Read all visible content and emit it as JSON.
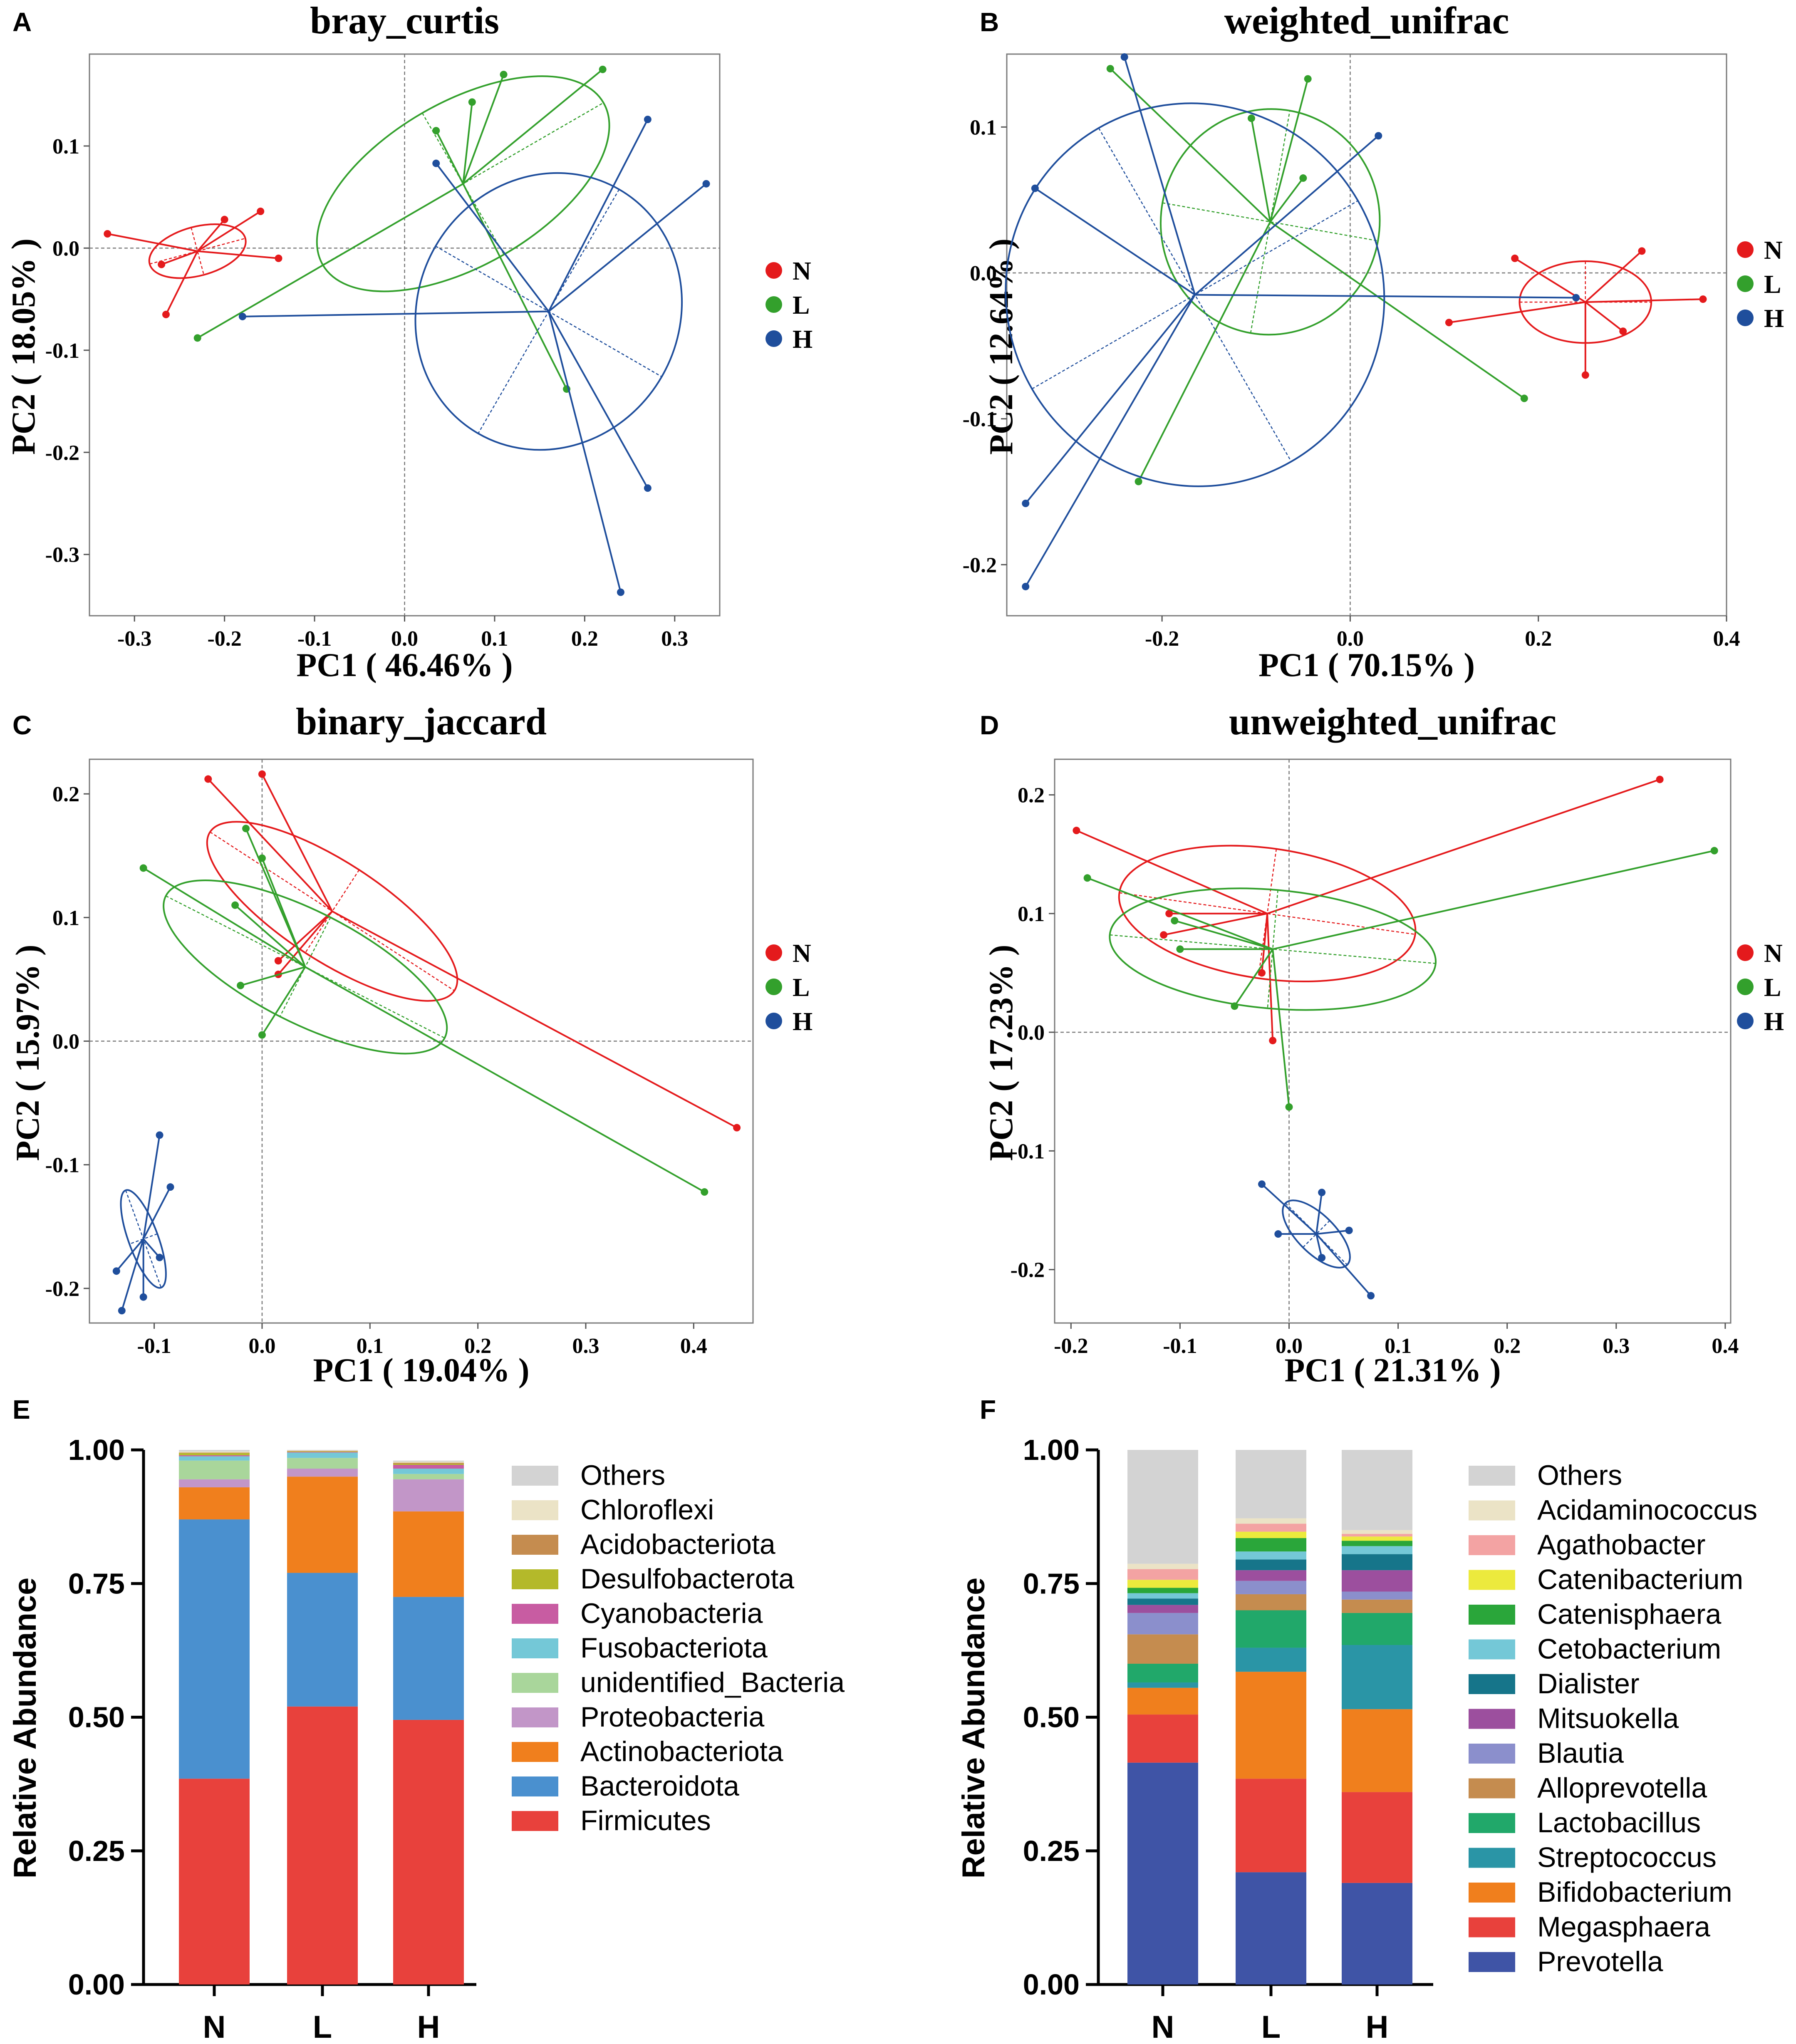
{
  "figure": {
    "groups": [
      {
        "name": "N",
        "color": "#e41a1c"
      },
      {
        "name": "L",
        "color": "#33a02c"
      },
      {
        "name": "H",
        "color": "#1f4e9c"
      }
    ]
  },
  "chart_data": [
    {
      "id": "A",
      "type": "scatter",
      "title": "bray_curtis",
      "xlabel": "PC1 ( 46.46% )",
      "ylabel": "PC2 ( 18.05% )",
      "xlim": [
        -0.35,
        0.35
      ],
      "ylim": [
        -0.36,
        0.19
      ],
      "xticks": [
        -0.3,
        -0.2,
        -0.1,
        0.0,
        0.1,
        0.2,
        0.3
      ],
      "yticks": [
        -0.3,
        -0.2,
        -0.1,
        0.0,
        0.1
      ],
      "legend": [
        "N",
        "L",
        "H"
      ],
      "legend_position": "right",
      "series": [
        {
          "name": "N",
          "centroid": [
            -0.23,
            -0.003
          ],
          "ellipse": {
            "rx": 0.055,
            "ry": 0.024,
            "angle": 15
          },
          "points": [
            [
              -0.33,
              0.014
            ],
            [
              -0.27,
              -0.016
            ],
            [
              -0.265,
              -0.065
            ],
            [
              -0.2,
              0.028
            ],
            [
              -0.16,
              0.036
            ],
            [
              -0.14,
              -0.01
            ]
          ]
        },
        {
          "name": "L",
          "centroid": [
            0.065,
            0.063
          ],
          "ellipse": {
            "rx": 0.18,
            "ry": 0.08,
            "angle": 30
          },
          "points": [
            [
              -0.23,
              -0.088
            ],
            [
              0.035,
              0.115
            ],
            [
              0.075,
              0.143
            ],
            [
              0.11,
              0.17
            ],
            [
              0.22,
              0.175
            ],
            [
              0.18,
              -0.138
            ]
          ]
        },
        {
          "name": "H",
          "centroid": [
            0.16,
            -0.062
          ],
          "ellipse": {
            "rx": 0.145,
            "ry": 0.138,
            "angle": -30
          },
          "points": [
            [
              -0.18,
              -0.067
            ],
            [
              0.035,
              0.083
            ],
            [
              0.27,
              0.126
            ],
            [
              0.335,
              0.063
            ],
            [
              0.27,
              -0.235
            ],
            [
              0.24,
              -0.337
            ]
          ]
        }
      ]
    },
    {
      "id": "B",
      "type": "scatter",
      "title": "weighted_unifrac",
      "xlabel": "PC1 ( 70.15% )",
      "ylabel": "PC2 ( 12.64% )",
      "xlim": [
        -0.365,
        0.4
      ],
      "ylim": [
        -0.235,
        0.15
      ],
      "xticks": [
        -0.2,
        0.0,
        0.2,
        0.4
      ],
      "yticks": [
        -0.2,
        -0.1,
        0.0,
        0.1
      ],
      "legend": [
        "N",
        "L",
        "H"
      ],
      "legend_position": "right",
      "series": [
        {
          "name": "N",
          "centroid": [
            0.25,
            -0.02
          ],
          "ellipse": {
            "rx": 0.07,
            "ry": 0.028,
            "angle": 0
          },
          "points": [
            [
              0.105,
              -0.034
            ],
            [
              0.175,
              0.01
            ],
            [
              0.31,
              0.015
            ],
            [
              0.375,
              -0.018
            ],
            [
              0.29,
              -0.04
            ],
            [
              0.25,
              -0.07
            ]
          ]
        },
        {
          "name": "L",
          "centroid": [
            -0.085,
            0.035
          ],
          "ellipse": {
            "rx": 0.12,
            "ry": 0.075,
            "angle": 80
          },
          "points": [
            [
              -0.255,
              0.14
            ],
            [
              -0.105,
              0.106
            ],
            [
              -0.045,
              0.133
            ],
            [
              -0.05,
              0.065
            ],
            [
              0.185,
              -0.086
            ],
            [
              -0.225,
              -0.143
            ]
          ]
        },
        {
          "name": "H",
          "centroid": [
            -0.165,
            -0.015
          ],
          "ellipse": {
            "rx": 0.2,
            "ry": 0.132,
            "angle": 30
          },
          "points": [
            [
              -0.24,
              0.148
            ],
            [
              -0.335,
              0.058
            ],
            [
              0.03,
              0.094
            ],
            [
              -0.345,
              -0.158
            ],
            [
              -0.345,
              -0.215
            ],
            [
              0.24,
              -0.017
            ]
          ]
        }
      ]
    },
    {
      "id": "C",
      "type": "scatter",
      "title": "binary_jaccard",
      "xlabel": "PC1 ( 19.04% )",
      "ylabel": "PC2 ( 15.97% )",
      "xlim": [
        -0.16,
        0.455
      ],
      "ylim": [
        -0.228,
        0.228
      ],
      "xticks": [
        -0.1,
        0.0,
        0.1,
        0.2,
        0.3,
        0.4
      ],
      "yticks": [
        -0.2,
        -0.1,
        0.0,
        0.1,
        0.2
      ],
      "legend": [
        "N",
        "L",
        "H"
      ],
      "legend_position": "right",
      "series": [
        {
          "name": "N",
          "centroid": [
            0.065,
            0.105
          ],
          "ellipse": {
            "rx": 0.135,
            "ry": 0.04,
            "angle": -33
          },
          "points": [
            [
              -0.05,
              0.212
            ],
            [
              0.0,
              0.216
            ],
            [
              0.015,
              0.065
            ],
            [
              0.015,
              0.054
            ],
            [
              0.44,
              -0.07
            ]
          ]
        },
        {
          "name": "L",
          "centroid": [
            0.04,
            0.06
          ],
          "ellipse": {
            "rx": 0.145,
            "ry": 0.045,
            "angle": -27
          },
          "points": [
            [
              -0.11,
              0.14
            ],
            [
              -0.015,
              0.172
            ],
            [
              0.0,
              0.148
            ],
            [
              -0.025,
              0.11
            ],
            [
              -0.02,
              0.045
            ],
            [
              0.0,
              0.005
            ],
            [
              0.41,
              -0.122
            ]
          ]
        },
        {
          "name": "H",
          "centroid": [
            -0.11,
            -0.16
          ],
          "ellipse": {
            "rx": 0.048,
            "ry": 0.012,
            "angle": -70
          },
          "points": [
            [
              -0.095,
              -0.076
            ],
            [
              -0.085,
              -0.118
            ],
            [
              -0.135,
              -0.186
            ],
            [
              -0.095,
              -0.175
            ],
            [
              -0.11,
              -0.207
            ],
            [
              -0.13,
              -0.218
            ]
          ]
        }
      ]
    },
    {
      "id": "D",
      "type": "scatter",
      "title": "unweighted_unifrac",
      "xlabel": "PC1 ( 21.31% )",
      "ylabel": "PC2 ( 17.23% )",
      "xlim": [
        -0.215,
        0.405
      ],
      "ylim": [
        -0.245,
        0.23
      ],
      "xticks": [
        -0.2,
        -0.1,
        0.0,
        0.1,
        0.2,
        0.3,
        0.4
      ],
      "yticks": [
        -0.2,
        -0.1,
        0.0,
        0.1,
        0.2
      ],
      "legend": [
        "N",
        "L",
        "H"
      ],
      "legend_position": "right",
      "series": [
        {
          "name": "N",
          "centroid": [
            -0.02,
            0.1
          ],
          "ellipse": {
            "rx": 0.137,
            "ry": 0.055,
            "angle": -8
          },
          "points": [
            [
              -0.195,
              0.17
            ],
            [
              -0.11,
              0.1
            ],
            [
              -0.115,
              0.082
            ],
            [
              -0.025,
              0.05
            ],
            [
              -0.015,
              -0.007
            ],
            [
              0.34,
              0.213
            ]
          ]
        },
        {
          "name": "L",
          "centroid": [
            -0.015,
            0.07
          ],
          "ellipse": {
            "rx": 0.15,
            "ry": 0.05,
            "angle": -5
          },
          "points": [
            [
              -0.185,
              0.13
            ],
            [
              -0.105,
              0.094
            ],
            [
              -0.1,
              0.07
            ],
            [
              -0.05,
              0.022
            ],
            [
              0.0,
              -0.063
            ],
            [
              0.39,
              0.153
            ]
          ]
        },
        {
          "name": "H",
          "centroid": [
            0.025,
            -0.17
          ],
          "ellipse": {
            "rx": 0.04,
            "ry": 0.016,
            "angle": -45
          },
          "points": [
            [
              -0.025,
              -0.128
            ],
            [
              0.03,
              -0.135
            ],
            [
              0.055,
              -0.167
            ],
            [
              -0.01,
              -0.17
            ],
            [
              0.03,
              -0.19
            ],
            [
              0.075,
              -0.222
            ]
          ]
        }
      ]
    },
    {
      "id": "E",
      "type": "bar",
      "stacked": true,
      "ylabel": "Relative Abundance",
      "ylim": [
        0,
        1
      ],
      "yticks": [
        "0.00",
        "0.25",
        "0.50",
        "0.75",
        "1.00"
      ],
      "categories": [
        "N",
        "L",
        "H"
      ],
      "series": [
        {
          "name": "Firmicutes",
          "color": "#e8413c",
          "values": [
            0.385,
            0.52,
            0.495
          ]
        },
        {
          "name": "Bacteroidota",
          "color": "#4a90cf",
          "values": [
            0.485,
            0.25,
            0.23
          ]
        },
        {
          "name": "Actinobacteriota",
          "color": "#f07f1d",
          "values": [
            0.06,
            0.18,
            0.16
          ]
        },
        {
          "name": "Proteobacteria",
          "color": "#c296c8",
          "values": [
            0.015,
            0.015,
            0.06
          ]
        },
        {
          "name": "unidentified_Bacteria",
          "color": "#a9d69b",
          "values": [
            0.035,
            0.02,
            0.01
          ]
        },
        {
          "name": "Fusobacteriota",
          "color": "#74c8d7",
          "values": [
            0.008,
            0.01,
            0.01
          ]
        },
        {
          "name": "Cyanobacteria",
          "color": "#c85ca2",
          "values": [
            0.002,
            0.001,
            0.007
          ]
        },
        {
          "name": "Desulfobacterota",
          "color": "#b4b92a",
          "values": [
            0.004,
            0.001,
            0.002
          ]
        },
        {
          "name": "Acidobacteriota",
          "color": "#c58c4f",
          "values": [
            0.001,
            0.001,
            0.002
          ]
        },
        {
          "name": "Chloroflexi",
          "color": "#ebe3c6",
          "values": [
            0.002,
            0.001,
            0.002
          ]
        },
        {
          "name": "Others",
          "color": "#d3d3d3",
          "values": [
            0.003,
            0.001,
            0.002
          ]
        }
      ],
      "legend_order": [
        "Others",
        "Chloroflexi",
        "Acidobacteriota",
        "Desulfobacterota",
        "Cyanobacteria",
        "Fusobacteriota",
        "unidentified_Bacteria",
        "Proteobacteria",
        "Actinobacteriota",
        "Bacteroidota",
        "Firmicutes"
      ]
    },
    {
      "id": "F",
      "type": "bar",
      "stacked": true,
      "ylabel": "Relative Abundance",
      "ylim": [
        0,
        1
      ],
      "yticks": [
        "0.00",
        "0.25",
        "0.50",
        "0.75",
        "1.00"
      ],
      "categories": [
        "N",
        "L",
        "H"
      ],
      "series": [
        {
          "name": "Prevotella",
          "color": "#3f54a6",
          "values": [
            0.415,
            0.21,
            0.19
          ]
        },
        {
          "name": "Megasphaera",
          "color": "#e8413c",
          "values": [
            0.09,
            0.175,
            0.17
          ]
        },
        {
          "name": "Bifidobacterium",
          "color": "#f07f1d",
          "values": [
            0.05,
            0.2,
            0.155
          ]
        },
        {
          "name": "Streptococcus",
          "color": "#2a95a6",
          "values": [
            0.01,
            0.045,
            0.12
          ]
        },
        {
          "name": "Lactobacillus",
          "color": "#21a86a",
          "values": [
            0.035,
            0.07,
            0.06
          ]
        },
        {
          "name": "Alloprevotella",
          "color": "#c58c4f",
          "values": [
            0.055,
            0.03,
            0.025
          ]
        },
        {
          "name": "Blautia",
          "color": "#8b8fcc",
          "values": [
            0.04,
            0.025,
            0.015
          ]
        },
        {
          "name": "Mitsuokella",
          "color": "#9c4f9e",
          "values": [
            0.015,
            0.02,
            0.04
          ]
        },
        {
          "name": "Dialister",
          "color": "#16758a",
          "values": [
            0.012,
            0.02,
            0.03
          ]
        },
        {
          "name": "Cetobacterium",
          "color": "#74c8d7",
          "values": [
            0.01,
            0.015,
            0.015
          ]
        },
        {
          "name": "Catenisphaera",
          "color": "#2aa63a",
          "values": [
            0.01,
            0.025,
            0.01
          ]
        },
        {
          "name": "Catenibacterium",
          "color": "#ecea3d",
          "values": [
            0.015,
            0.012,
            0.008
          ]
        },
        {
          "name": "Agathobacter",
          "color": "#f3a3a3",
          "values": [
            0.02,
            0.015,
            0.005
          ]
        },
        {
          "name": "Acidaminococcus",
          "color": "#ebe3c6",
          "values": [
            0.01,
            0.01,
            0.007
          ]
        },
        {
          "name": "Others",
          "color": "#d3d3d3",
          "values": [
            0.213,
            0.128,
            0.15
          ]
        }
      ],
      "legend_order": [
        "Others",
        "Acidaminococcus",
        "Agathobacter",
        "Catenibacterium",
        "Catenisphaera",
        "Cetobacterium",
        "Dialister",
        "Mitsuokella",
        "Blautia",
        "Alloprevotella",
        "Lactobacillus",
        "Streptococcus",
        "Bifidobacterium",
        "Megasphaera",
        "Prevotella"
      ]
    }
  ]
}
